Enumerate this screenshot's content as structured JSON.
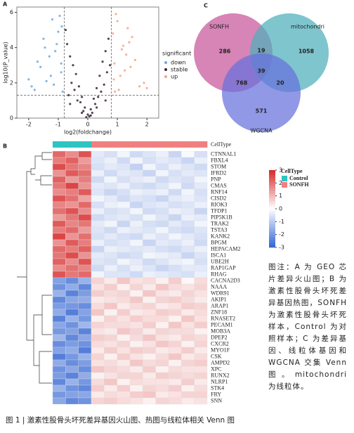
{
  "panel_labels": [
    "A",
    "B",
    "C"
  ],
  "chart_data": [
    {
      "type": "scatter",
      "x_label": "log2(foldchange)",
      "y_label": "log10(P_value)",
      "xlim": [
        -2.4,
        2.4
      ],
      "ylim": [
        0,
        6.3
      ],
      "xticks": [
        -2,
        -1,
        0,
        1,
        2
      ],
      "yticks": [
        0,
        2,
        4,
        6
      ],
      "vlines": [
        -0.8,
        0.8
      ],
      "hline": 1.3,
      "legend_title": "significant",
      "series": [
        {
          "name": "down",
          "color": "#6fa8dc",
          "x": [
            -1.9,
            -1.7,
            -1.5,
            -1.4,
            -1.2,
            -1.1,
            -1.0,
            -0.9,
            -0.85,
            -1.6,
            -1.3,
            -0.95,
            -1.8,
            -1.05,
            -0.9,
            -1.25,
            -1.45,
            -0.88,
            -1.15,
            -2.0
          ],
          "values": [
            1.8,
            3.2,
            4.5,
            2.1,
            5.6,
            3.8,
            4.9,
            2.6,
            1.5,
            2.9,
            3.5,
            5.8,
            1.6,
            4.2,
            3.1,
            2.4,
            4.0,
            5.2,
            1.9,
            2.2
          ]
        },
        {
          "name": "stable",
          "color": "#3b2535",
          "x": [
            -0.7,
            -0.6,
            -0.5,
            -0.4,
            -0.3,
            -0.2,
            -0.1,
            0,
            0.1,
            0.2,
            0.3,
            0.4,
            0.5,
            0.6,
            0.7,
            -0.75,
            -0.55,
            -0.35,
            -0.15,
            0.05,
            0.25,
            0.45,
            0.65,
            -0.65,
            -0.45,
            -0.25,
            0.15,
            0.35,
            0.55,
            0.75,
            -0.05,
            0.1,
            -0.2,
            0.3,
            -0.6,
            0.6
          ],
          "values": [
            4.2,
            3.5,
            3.0,
            2.5,
            1.8,
            1.2,
            0.6,
            0.2,
            0.5,
            1.1,
            1.7,
            2.4,
            3.2,
            3.8,
            4.5,
            5.0,
            2.0,
            1.0,
            0.4,
            0.1,
            0.8,
            1.5,
            2.6,
            1.3,
            1.6,
            0.9,
            0.3,
            1.2,
            1.9,
            3.0,
            0.05,
            0.15,
            0.3,
            0.6,
            0.8,
            1.0
          ]
        },
        {
          "name": "up",
          "color": "#f4a582",
          "x": [
            0.85,
            0.9,
            1.0,
            1.1,
            1.2,
            1.3,
            1.45,
            1.6,
            1.75,
            0.95,
            1.05,
            1.5,
            0.88,
            1.15,
            1.35,
            1.9,
            0.92,
            1.25,
            1.4,
            2.0
          ],
          "values": [
            4.8,
            3.1,
            5.5,
            2.4,
            4.1,
            3.6,
            2.9,
            3.3,
            1.8,
            5.9,
            1.6,
            4.6,
            2.2,
            3.9,
            5.1,
            2.0,
            1.5,
            2.7,
            4.3,
            1.7
          ]
        }
      ]
    },
    {
      "type": "heatmap",
      "annotation_title": "CellType",
      "groups": [
        {
          "name": "Control",
          "color": "#2ec4c4"
        },
        {
          "name": "SONFH",
          "color": "#f08080"
        }
      ],
      "column_group": [
        0,
        0,
        0,
        1,
        1,
        1,
        1,
        1,
        1,
        1,
        1,
        1
      ],
      "zlim": [
        -3,
        3
      ],
      "zticks": [
        3,
        2,
        1,
        0,
        -1,
        -2,
        -3
      ],
      "rows": [
        "CTNNAL1",
        "FBXL4",
        "STOM",
        "IFRD2",
        "PNP",
        "CMAS",
        "RNF14",
        "CISD2",
        "RIOK3",
        "TFDP1",
        "PIP5K1B",
        "TRAK2",
        "TSTA3",
        "KANK2",
        "BPGM",
        "HEPACAM2",
        "ISCA1",
        "UBE2H",
        "RAP1GAP",
        "RHAG",
        "CACNA2D3",
        "NAAA",
        "WDR91",
        "AKIP1",
        "ARAP1",
        "ZNF18",
        "RNASET2",
        "PECAM1",
        "MOB3A",
        "DPEP2",
        "CXCR2",
        "MYO1F",
        "CSK",
        "AMPD2",
        "XPC",
        "RUNX2",
        "NLRP1",
        "STK4",
        "FRY",
        "SNN"
      ],
      "matrix": [
        [
          2.1,
          1.6,
          2.4,
          -0.4,
          -0.6,
          -0.2,
          -0.7,
          -0.5,
          -0.3,
          -0.8,
          -0.1,
          -0.6
        ],
        [
          1.8,
          2.2,
          1.4,
          -0.5,
          -0.3,
          -0.7,
          -0.2,
          -0.6,
          -0.4,
          -0.5,
          -0.8,
          -0.3
        ],
        [
          2.5,
          1.9,
          1.7,
          -0.6,
          -0.4,
          -0.5,
          -0.9,
          -0.2,
          -0.6,
          -0.3,
          -0.5,
          -0.7
        ],
        [
          1.5,
          2.3,
          2.0,
          -0.3,
          -0.7,
          -0.4,
          -0.5,
          -0.8,
          -0.2,
          -0.6,
          -0.4,
          -0.5
        ],
        [
          2.2,
          1.4,
          1.8,
          -0.7,
          -0.2,
          -0.6,
          -0.4,
          -0.3,
          -0.7,
          -0.5,
          -0.6,
          -0.2
        ],
        [
          1.9,
          2.6,
          1.5,
          -0.4,
          -0.5,
          -0.3,
          -0.6,
          -0.7,
          -0.5,
          -0.2,
          -0.7,
          -0.4
        ],
        [
          1.6,
          1.8,
          2.3,
          -0.5,
          -0.8,
          -0.6,
          -0.3,
          -0.4,
          -0.3,
          -0.7,
          -0.2,
          -0.6
        ],
        [
          2.4,
          2.0,
          1.3,
          -0.2,
          -0.4,
          -0.7,
          -0.5,
          -0.6,
          -0.8,
          -0.4,
          -0.3,
          -0.5
        ],
        [
          1.7,
          1.5,
          2.1,
          -0.6,
          -0.3,
          -0.2,
          -0.8,
          -0.5,
          -0.4,
          -0.6,
          -0.5,
          -0.3
        ],
        [
          2.0,
          2.4,
          1.6,
          -0.3,
          -0.6,
          -0.5,
          -0.2,
          -0.7,
          -0.6,
          -0.3,
          -0.4,
          -0.8
        ],
        [
          1.4,
          1.9,
          2.5,
          -0.7,
          -0.5,
          -0.4,
          -0.6,
          -0.2,
          -0.5,
          -0.8,
          -0.3,
          -0.4
        ],
        [
          2.3,
          1.7,
          1.9,
          -0.4,
          -0.2,
          -0.8,
          -0.3,
          -0.6,
          -0.7,
          -0.4,
          -0.6,
          -0.2
        ],
        [
          1.8,
          2.1,
          1.4,
          -0.5,
          -0.7,
          -0.3,
          -0.4,
          -0.5,
          -0.2,
          -0.6,
          -0.7,
          -0.5
        ],
        [
          2.6,
          1.5,
          2.0,
          -0.6,
          -0.4,
          -0.6,
          -0.7,
          -0.3,
          -0.5,
          -0.2,
          -0.4,
          -0.6
        ],
        [
          1.5,
          2.3,
          1.8,
          -0.3,
          -0.6,
          -0.5,
          -0.2,
          -0.8,
          -0.4,
          -0.5,
          -0.3,
          -0.7
        ],
        [
          2.1,
          1.8,
          2.2,
          -0.8,
          -0.3,
          -0.4,
          -0.5,
          -0.4,
          -0.6,
          -0.7,
          -0.5,
          -0.3
        ],
        [
          1.9,
          2.5,
          1.5,
          -0.4,
          -0.5,
          -0.7,
          -0.6,
          -0.2,
          -0.3,
          -0.4,
          -0.8,
          -0.5
        ],
        [
          2.2,
          1.6,
          2.4,
          -0.5,
          -0.6,
          -0.2,
          -0.4,
          -0.7,
          -0.5,
          -0.3,
          -0.2,
          -0.6
        ],
        [
          1.6,
          2.0,
          1.7,
          -0.7,
          -0.3,
          -0.6,
          -0.3,
          -0.5,
          -0.8,
          -0.6,
          -0.4,
          -0.4
        ],
        [
          2.4,
          1.9,
          2.1,
          -0.2,
          -0.5,
          -0.5,
          -0.7,
          -0.3,
          -0.4,
          -0.5,
          -0.6,
          -0.3
        ],
        [
          -1.8,
          -2.2,
          -1.5,
          0.6,
          0.3,
          0.8,
          0.4,
          0.5,
          0.2,
          0.7,
          0.1,
          0.5
        ],
        [
          -2.1,
          -1.6,
          -2.3,
          0.4,
          0.7,
          0.2,
          0.6,
          0.3,
          0.8,
          0.5,
          0.4,
          0.6
        ],
        [
          -1.5,
          -2.4,
          -1.9,
          0.7,
          0.5,
          0.6,
          0.2,
          0.8,
          0.4,
          0.3,
          0.6,
          0.4
        ],
        [
          -2.3,
          -1.7,
          -1.6,
          0.3,
          0.4,
          0.5,
          0.8,
          0.2,
          0.6,
          0.7,
          0.5,
          0.3
        ],
        [
          -1.9,
          -2.0,
          -2.2,
          0.5,
          0.8,
          0.3,
          0.5,
          0.6,
          0.3,
          0.4,
          0.7,
          0.6
        ],
        [
          -1.6,
          -2.5,
          -1.8,
          0.8,
          0.2,
          0.7,
          0.3,
          0.4,
          0.7,
          0.6,
          0.3,
          0.5
        ],
        [
          -2.4,
          -1.5,
          -2.0,
          0.2,
          0.6,
          0.4,
          0.7,
          0.5,
          0.5,
          0.2,
          0.8,
          0.4
        ],
        [
          -1.7,
          -2.1,
          -1.4,
          0.6,
          0.5,
          0.5,
          0.4,
          0.7,
          0.2,
          0.8,
          0.4,
          0.7
        ],
        [
          -2.0,
          -1.8,
          -2.4,
          0.4,
          0.3,
          0.8,
          0.6,
          0.3,
          0.6,
          0.5,
          0.5,
          0.2
        ],
        [
          -1.4,
          -2.3,
          -1.7,
          0.7,
          0.6,
          0.2,
          0.5,
          0.8,
          0.4,
          0.3,
          0.6,
          0.5
        ],
        [
          -2.2,
          -1.9,
          -2.1,
          0.5,
          0.4,
          0.6,
          0.2,
          0.4,
          0.8,
          0.6,
          0.2,
          0.6
        ],
        [
          -1.8,
          -1.6,
          -2.5,
          0.3,
          0.7,
          0.4,
          0.7,
          0.6,
          0.3,
          0.4,
          0.7,
          0.3
        ],
        [
          -2.5,
          -2.0,
          -1.5,
          0.6,
          0.2,
          0.7,
          0.4,
          0.2,
          0.5,
          0.8,
          0.3,
          0.5
        ],
        [
          -1.6,
          -2.2,
          -1.9,
          0.4,
          0.5,
          0.3,
          0.8,
          0.5,
          0.6,
          0.2,
          0.6,
          0.7
        ],
        [
          -2.1,
          -1.7,
          -2.2,
          0.8,
          0.6,
          0.5,
          0.3,
          0.7,
          0.2,
          0.5,
          0.4,
          0.4
        ],
        [
          -1.9,
          -2.4,
          -1.6,
          0.2,
          0.4,
          0.6,
          0.6,
          0.3,
          0.7,
          0.6,
          0.5,
          0.6
        ],
        [
          -2.3,
          -1.5,
          -2.0,
          0.5,
          0.8,
          0.2,
          0.5,
          0.4,
          0.4,
          0.3,
          0.7,
          0.3
        ],
        [
          -1.5,
          -2.1,
          -2.3,
          0.7,
          0.3,
          0.7,
          0.2,
          0.6,
          0.5,
          0.7,
          0.2,
          0.5
        ],
        [
          -2.0,
          -1.8,
          -1.7,
          0.3,
          0.5,
          0.4,
          0.7,
          0.8,
          0.3,
          0.4,
          0.6,
          0.6
        ],
        [
          -1.7,
          -2.3,
          -2.1,
          0.6,
          0.7,
          0.5,
          0.4,
          0.2,
          0.6,
          0.5,
          0.3,
          0.4
        ]
      ]
    },
    {
      "type": "venn",
      "sets": [
        {
          "name": "SONFH",
          "color": "#c8559a"
        },
        {
          "name": "mitochondri",
          "color": "#4eaebb"
        },
        {
          "name": "WGCNA",
          "color": "#6670dc"
        }
      ],
      "regions": [
        {
          "sets": [
            0
          ],
          "value": 286
        },
        {
          "sets": [
            1
          ],
          "value": 1058
        },
        {
          "sets": [
            2
          ],
          "value": 571
        },
        {
          "sets": [
            0,
            1
          ],
          "value": 19
        },
        {
          "sets": [
            0,
            2
          ],
          "value": 768
        },
        {
          "sets": [
            1,
            2
          ],
          "value": 20
        },
        {
          "sets": [
            0,
            1,
            2
          ],
          "value": 39
        }
      ]
    }
  ],
  "legend_note": "图注：A 为 GEO 芯片差异火山图；B 为激素性股骨头坏死差异基因热图，SONFH 为激素性股骨头坏死样本，Control 为对照样本；C 为差异基因、线粒体基因和 WGCNA 交集 Venn 图。mitochondri 为线粒体。",
  "caption": "图 1 | 激素性股骨头坏死差异基因火山图、热图与线粒体相关 Venn 图"
}
